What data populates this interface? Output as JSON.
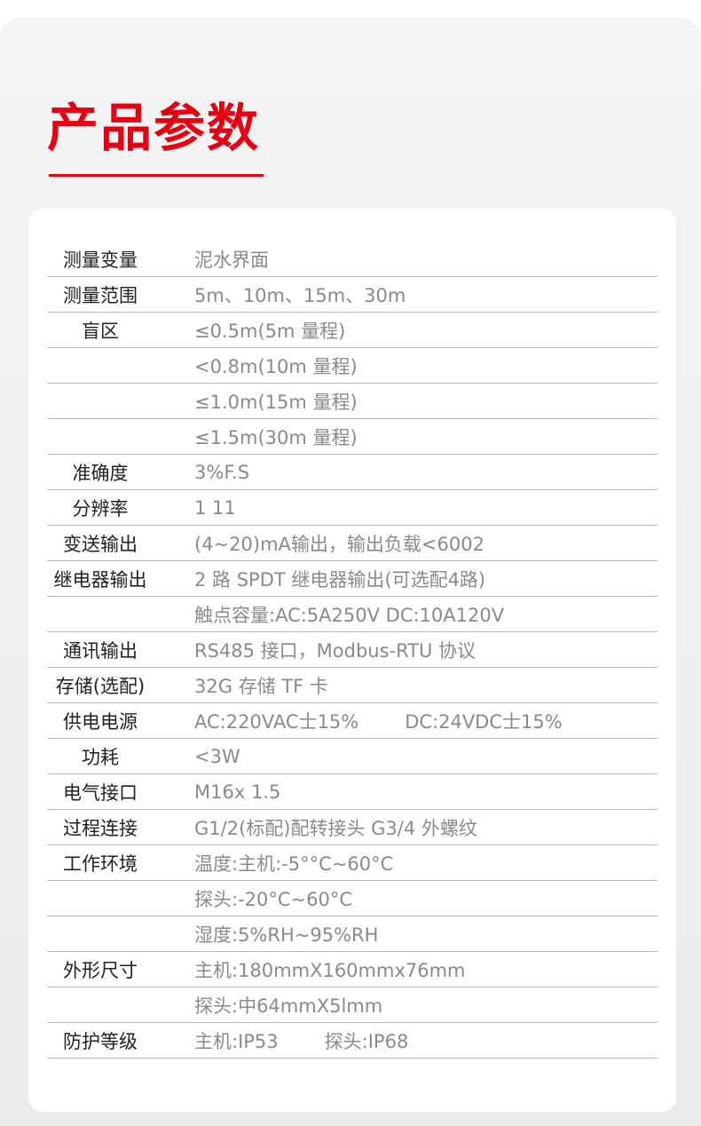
{
  "title": "产品参数",
  "colors": {
    "accent": "#e60012"
  },
  "rows": [
    {
      "label": "测量变量",
      "value": [
        "泥水界面"
      ]
    },
    {
      "label": "测量范围",
      "value": [
        "5m、10m、15m、30m"
      ]
    },
    {
      "label": "盲区",
      "value": [
        "≤0.5m(5m 量程)"
      ]
    },
    {
      "label": "",
      "value": [
        "<0.8m(10m 量程)"
      ]
    },
    {
      "label": "",
      "value": [
        "≤1.0m(15m 量程)"
      ]
    },
    {
      "label": "",
      "value": [
        "≤1.5m(30m 量程)"
      ]
    },
    {
      "label": "准确度",
      "value": [
        "3%F.S"
      ]
    },
    {
      "label": "分辨率",
      "value": [
        "1 11"
      ]
    },
    {
      "label": "变送输出",
      "value": [
        "(4~20)mA输出，输出负载<6002"
      ]
    },
    {
      "label": "继电器输出",
      "value": [
        "2 路 SPDT 继电器输出(可选配4路)"
      ]
    },
    {
      "label": "",
      "value": [
        "触点容量:AC:5A250V DC:10A120V"
      ]
    },
    {
      "label": "通讯输出",
      "value": [
        "RS485 接口，Modbus-RTU 协议"
      ]
    },
    {
      "label": "存储(选配)",
      "value": [
        "32G 存储 TF 卡"
      ]
    },
    {
      "label": "供电电源",
      "value": [
        "AC:220VAC士15%",
        "DC:24VDC士15%"
      ]
    },
    {
      "label": "功耗",
      "value": [
        "<3W"
      ]
    },
    {
      "label": "电气接口",
      "value": [
        "M16x 1.5"
      ]
    },
    {
      "label": "过程连接",
      "value": [
        "G1/2(标配)配转接头 G3/4 外螺纹"
      ]
    },
    {
      "label": "工作环境",
      "value": [
        "温度:主机:-5°°C~60°C"
      ]
    },
    {
      "label": "",
      "value": [
        "探头:-20°C~60°C"
      ]
    },
    {
      "label": "",
      "value": [
        "湿度:5%RH~95%RH"
      ]
    },
    {
      "label": "外形尺寸",
      "value": [
        "主机:180mmX160mmx76mm"
      ]
    },
    {
      "label": "",
      "value": [
        "探头:中64mmX5lmm"
      ]
    },
    {
      "label": "防护等级",
      "value": [
        "主机:IP53",
        "探头:IP68"
      ]
    }
  ]
}
